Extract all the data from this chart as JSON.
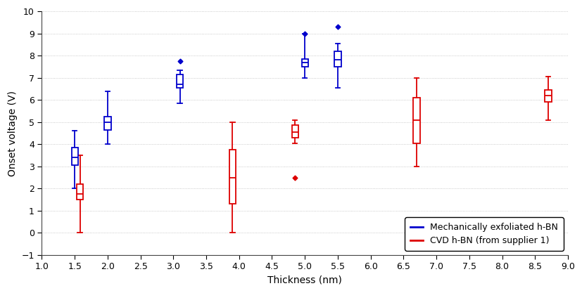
{
  "blue_boxes": [
    {
      "x": 1.5,
      "whislo": 2.0,
      "q1": 3.05,
      "med": 3.4,
      "q3": 3.85,
      "whishi": 4.6,
      "fliers": []
    },
    {
      "x": 2.0,
      "whislo": 4.0,
      "q1": 4.65,
      "med": 5.0,
      "q3": 5.25,
      "whishi": 6.4,
      "fliers": []
    },
    {
      "x": 3.1,
      "whislo": 5.85,
      "q1": 6.55,
      "med": 6.7,
      "q3": 7.15,
      "whishi": 7.35,
      "fliers": [
        7.75
      ]
    },
    {
      "x": 5.0,
      "whislo": 7.0,
      "q1": 7.5,
      "med": 7.7,
      "q3": 7.85,
      "whishi": 9.0,
      "fliers": [
        9.0
      ]
    },
    {
      "x": 5.5,
      "whislo": 6.55,
      "q1": 7.5,
      "med": 7.8,
      "q3": 8.2,
      "whishi": 8.55,
      "fliers": [
        9.3
      ]
    }
  ],
  "red_boxes": [
    {
      "x": 1.58,
      "whislo": 0.0,
      "q1": 1.5,
      "med": 1.75,
      "q3": 2.2,
      "whishi": 3.5,
      "fliers": []
    },
    {
      "x": 3.9,
      "whislo": 0.0,
      "q1": 1.3,
      "med": 2.5,
      "q3": 3.75,
      "whishi": 5.0,
      "fliers": []
    },
    {
      "x": 4.85,
      "whislo": 4.05,
      "q1": 4.3,
      "med": 4.55,
      "q3": 4.85,
      "whishi": 5.1,
      "fliers": [
        2.5
      ]
    },
    {
      "x": 6.7,
      "whislo": 3.0,
      "q1": 4.05,
      "med": 5.1,
      "q3": 6.1,
      "whishi": 7.0,
      "fliers": []
    },
    {
      "x": 8.7,
      "whislo": 5.1,
      "q1": 5.9,
      "med": 6.2,
      "q3": 6.45,
      "whishi": 7.05,
      "fliers": []
    }
  ],
  "blue_color": "#0000cc",
  "red_color": "#dd0000",
  "box_width": 0.1,
  "xlabel": "Thickness (nm)",
  "ylabel": "Onset voltage (V)",
  "xlim": [
    1.0,
    9.0
  ],
  "ylim": [
    -1.0,
    10.0
  ],
  "xticks": [
    1.0,
    1.5,
    2.0,
    2.5,
    3.0,
    3.5,
    4.0,
    4.5,
    5.0,
    5.5,
    6.0,
    6.5,
    7.0,
    7.5,
    8.0,
    8.5,
    9.0
  ],
  "yticks": [
    -1,
    0,
    1,
    2,
    3,
    4,
    5,
    6,
    7,
    8,
    9,
    10
  ],
  "legend_blue": "Mechanically exfoliated h-BN",
  "legend_red": "CVD h-BN (from supplier 1)",
  "background_color": "#ffffff",
  "grid_color": "#bbbbbb",
  "figwidth": 8.28,
  "figheight": 4.17,
  "dpi": 100
}
